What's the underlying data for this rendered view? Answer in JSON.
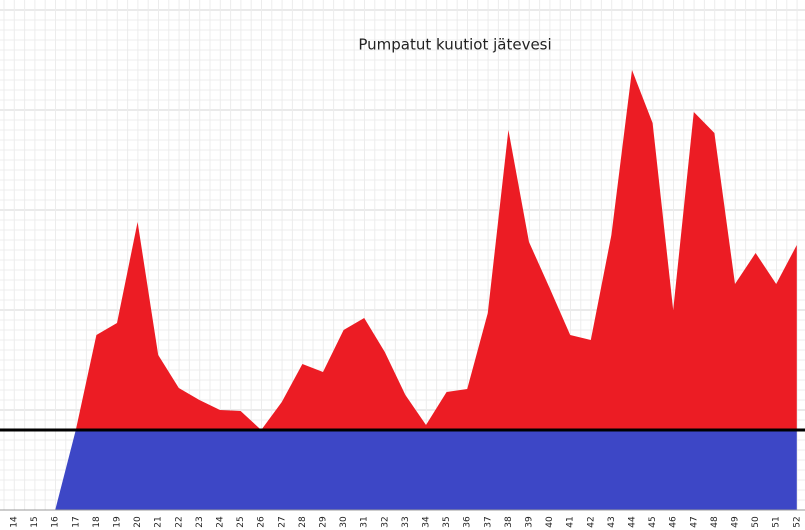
{
  "chart_data": {
    "type": "area",
    "title": "Pumpatut kuutiot jätevesi",
    "categories": [
      "14",
      "15",
      "16",
      "17",
      "18",
      "19",
      "20",
      "21",
      "22",
      "23",
      "24",
      "25",
      "26",
      "27",
      "28",
      "29",
      "30",
      "31",
      "32",
      "33",
      "34",
      "35",
      "36",
      "37",
      "38",
      "39",
      "40",
      "41",
      "42",
      "43",
      "44",
      "45",
      "46",
      "47",
      "48",
      "49",
      "50",
      "51",
      "52"
    ],
    "stacked": true,
    "grid": true,
    "ylim": [
      0,
      51
    ],
    "baseline": 8,
    "series": [
      {
        "color": "#3d47c6",
        "values": [
          0,
          0,
          0,
          8,
          8,
          8,
          8,
          8,
          8,
          8,
          8,
          8,
          8,
          8,
          8,
          8,
          8,
          8,
          8,
          8,
          8,
          8,
          8,
          8,
          8,
          8,
          8,
          8,
          8,
          8,
          8,
          8,
          8,
          8,
          8,
          8,
          8,
          8,
          8
        ]
      },
      {
        "color": "#ec1c24",
        "values": [
          0,
          0,
          0,
          0,
          9.5,
          10.7,
          20.8,
          7.5,
          4.2,
          3,
          2,
          1.9,
          0,
          2.8,
          6.6,
          5.8,
          10,
          11.2,
          7.8,
          3.5,
          0.5,
          3.8,
          4.1,
          11.7,
          30,
          18.8,
          14.2,
          9.5,
          9,
          19.5,
          36,
          30.7,
          12,
          31.8,
          29.7,
          14.6,
          17.7,
          14.6,
          18.5
        ]
      }
    ]
  }
}
